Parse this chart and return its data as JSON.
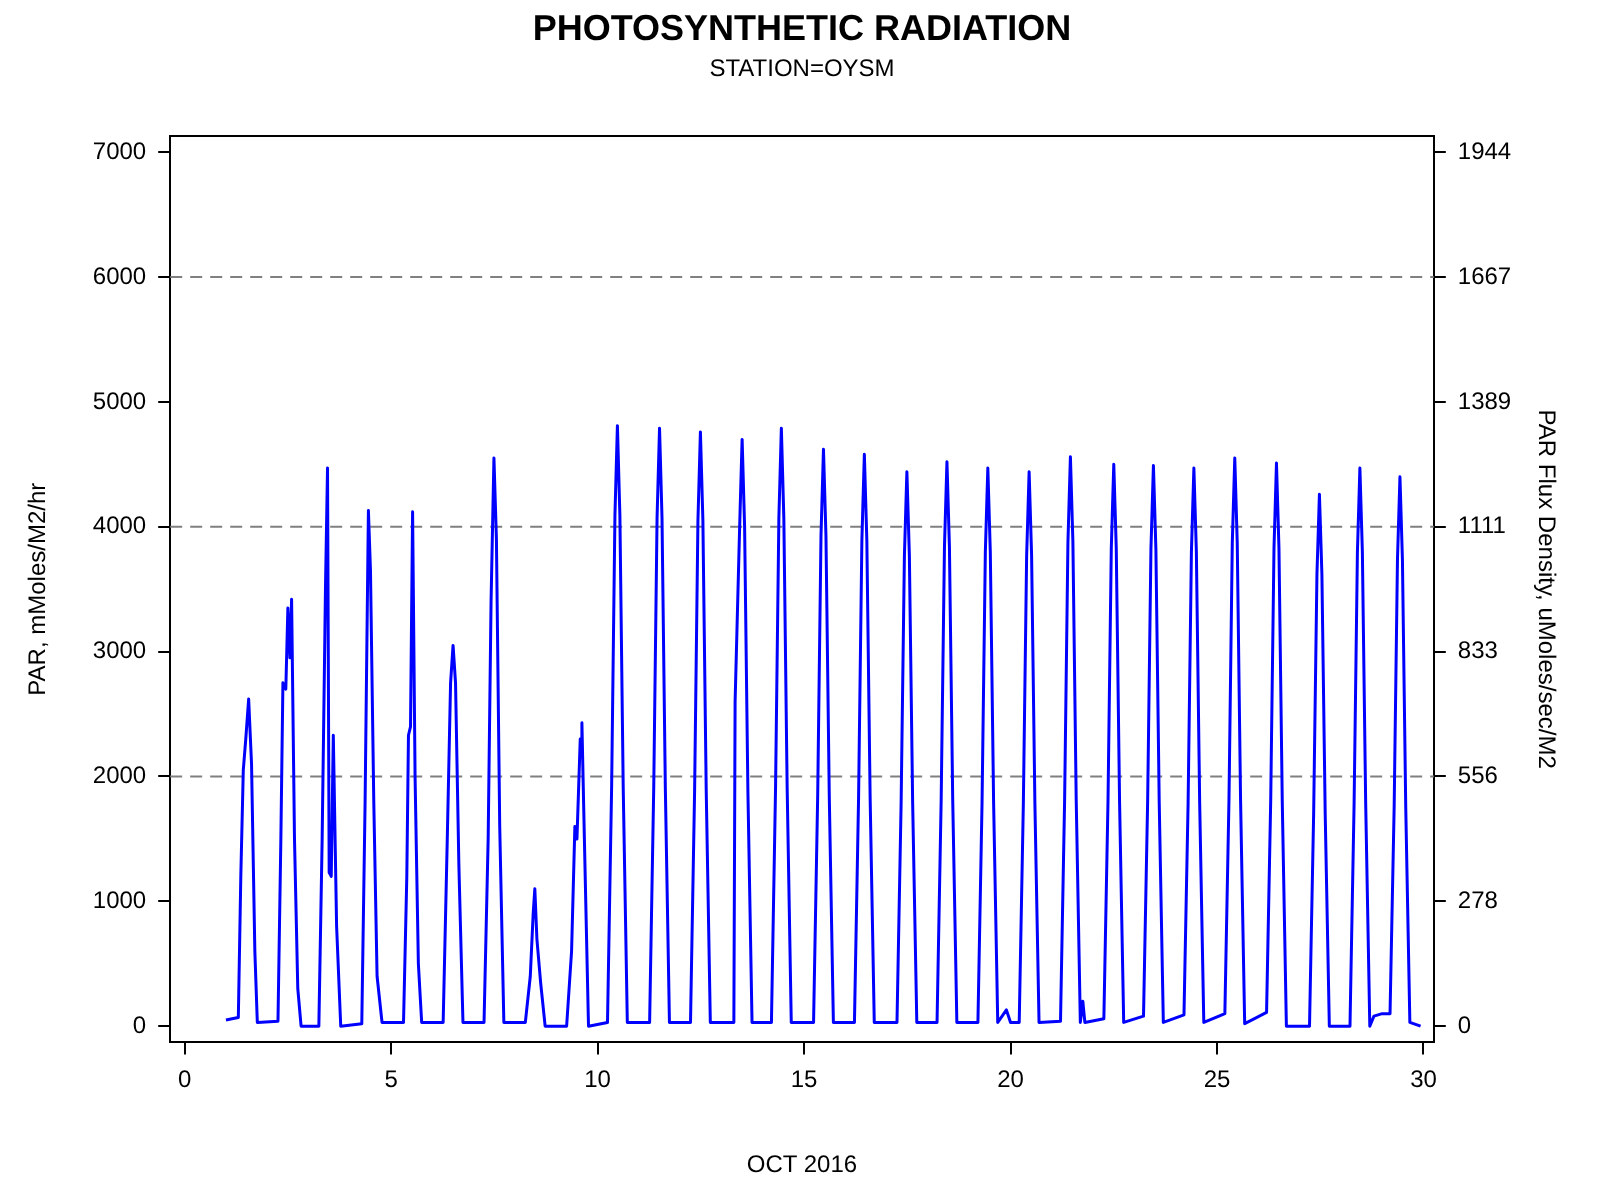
{
  "chart_data": {
    "type": "line",
    "title": "PHOTOSYNTHETIC RADIATION",
    "subtitle": "STATION=OYSM",
    "xlabel": "OCT 2016",
    "ylabel": "PAR, mMoles/M2/hr",
    "y2label": "PAR Flux Density, uMoles/sec/M2",
    "xlim": [
      -0.35,
      30.25
    ],
    "xticks": [
      0,
      5,
      10,
      15,
      20,
      25,
      30
    ],
    "ylim": [
      -130,
      7130
    ],
    "yticks": [
      0,
      1000,
      2000,
      3000,
      4000,
      5000,
      6000,
      7000
    ],
    "y2lim": [
      -36.1,
      1980.6
    ],
    "y2ticks": [
      0,
      {
        "value": 277.8,
        "label": "278"
      },
      {
        "value": 555.6,
        "label": "556"
      },
      {
        "value": 833.3,
        "label": "833"
      },
      {
        "value": 1111.1,
        "label": "1111"
      },
      {
        "value": 1388.9,
        "label": "1389"
      },
      {
        "value": 1666.7,
        "label": "1667"
      },
      {
        "value": 1944.4,
        "label": "1944"
      }
    ],
    "ref_lines": [
      {
        "axis": "y",
        "value": 2000,
        "color": "#808080",
        "line_style": "dashed"
      },
      {
        "axis": "y",
        "value": 4000,
        "color": "#808080",
        "line_style": "dashed"
      },
      {
        "axis": "y",
        "value": 6000,
        "color": "#808080",
        "line_style": "dashed"
      }
    ],
    "marker": "none",
    "line_style": "solid",
    "x": [
      1.0,
      1.3,
      1.36,
      1.42,
      1.48,
      1.55,
      1.62,
      1.7,
      1.76,
      2.26,
      2.33,
      2.38,
      2.45,
      2.5,
      2.55,
      2.59,
      2.66,
      2.74,
      2.82,
      3.25,
      3.33,
      3.41,
      3.46,
      3.5,
      3.55,
      3.6,
      3.68,
      3.78,
      4.29,
      4.37,
      4.45,
      4.5,
      4.58,
      4.66,
      4.78,
      5.3,
      5.38,
      5.42,
      5.47,
      5.52,
      5.58,
      5.66,
      5.74,
      6.26,
      6.36,
      6.44,
      6.5,
      6.56,
      6.64,
      6.74,
      7.25,
      7.35,
      7.42,
      7.49,
      7.55,
      7.63,
      7.73,
      8.25,
      8.37,
      8.44,
      8.48,
      8.53,
      8.62,
      8.73,
      9.25,
      9.37,
      9.45,
      9.5,
      9.58,
      9.62,
      9.68,
      9.78,
      10.24,
      10.34,
      10.42,
      10.48,
      10.54,
      10.62,
      10.72,
      11.26,
      11.36,
      11.44,
      11.5,
      11.56,
      11.64,
      11.74,
      12.25,
      12.35,
      12.43,
      12.49,
      12.55,
      12.63,
      12.73,
      13.3,
      13.33,
      13.44,
      13.5,
      13.56,
      13.64,
      13.74,
      14.21,
      14.31,
      14.39,
      14.45,
      14.51,
      14.59,
      14.69,
      15.23,
      15.33,
      15.41,
      15.47,
      15.53,
      15.61,
      15.71,
      16.22,
      16.32,
      16.4,
      16.46,
      16.52,
      16.6,
      16.7,
      17.25,
      17.35,
      17.43,
      17.49,
      17.55,
      17.63,
      17.73,
      18.22,
      18.32,
      18.4,
      18.46,
      18.52,
      18.6,
      18.7,
      19.21,
      19.31,
      19.39,
      19.45,
      19.51,
      19.59,
      19.69,
      19.9,
      20.0,
      20.21,
      20.31,
      20.39,
      20.45,
      20.51,
      20.59,
      20.69,
      21.21,
      21.31,
      21.39,
      21.45,
      21.51,
      21.59,
      21.69,
      21.75,
      21.8,
      22.26,
      22.36,
      22.44,
      22.5,
      22.56,
      22.64,
      22.74,
      23.22,
      23.32,
      23.4,
      23.46,
      23.52,
      23.6,
      23.7,
      24.2,
      24.3,
      24.38,
      24.44,
      24.5,
      24.58,
      24.68,
      25.19,
      25.29,
      25.37,
      25.43,
      25.49,
      25.57,
      25.67,
      26.2,
      26.3,
      26.38,
      26.44,
      26.5,
      26.58,
      26.68,
      27.24,
      27.34,
      27.42,
      27.48,
      27.54,
      27.62,
      27.72,
      28.22,
      28.32,
      28.4,
      28.46,
      28.52,
      28.6,
      28.7,
      28.8,
      29.0,
      29.19,
      29.29,
      29.37,
      29.43,
      29.49,
      29.57,
      29.67,
      29.93
    ],
    "series": [
      {
        "color": "#0000ff",
        "values": [
          50,
          70,
          1200,
          2050,
          2300,
          2620,
          2100,
          600,
          30,
          40,
          1500,
          2750,
          2700,
          3350,
          2950,
          3420,
          1500,
          300,
          0,
          0,
          1500,
          3500,
          4470,
          1230,
          1200,
          2330,
          800,
          0,
          20,
          1800,
          4130,
          3650,
          1800,
          400,
          30,
          30,
          1200,
          2330,
          2400,
          4120,
          2000,
          500,
          30,
          30,
          1500,
          2750,
          3050,
          2750,
          1300,
          30,
          30,
          1500,
          3400,
          4550,
          3900,
          1600,
          30,
          30,
          400,
          900,
          1100,
          700,
          350,
          0,
          0,
          600,
          1600,
          1500,
          2300,
          2430,
          1500,
          0,
          30,
          1920,
          4090,
          4810,
          4090,
          1920,
          30,
          30,
          1920,
          4070,
          4790,
          4070,
          1920,
          30,
          30,
          1900,
          4050,
          4760,
          4050,
          1900,
          30,
          30,
          2600,
          4000,
          4700,
          4000,
          1880,
          30,
          30,
          1920,
          4070,
          4790,
          4070,
          1920,
          30,
          30,
          1850,
          3930,
          4620,
          3930,
          1850,
          30,
          30,
          1830,
          3890,
          4580,
          3890,
          1830,
          30,
          30,
          1780,
          3770,
          4440,
          3770,
          1780,
          30,
          30,
          1810,
          3840,
          4520,
          3840,
          1810,
          30,
          30,
          1790,
          3800,
          4470,
          3800,
          1790,
          30,
          130,
          30,
          30,
          1780,
          3770,
          4440,
          3770,
          1780,
          30,
          40,
          1820,
          3880,
          4560,
          3880,
          1820,
          30,
          200,
          30,
          60,
          1800,
          3830,
          4500,
          3830,
          1800,
          30,
          80,
          1800,
          3820,
          4490,
          3820,
          1800,
          30,
          90,
          1790,
          3800,
          4470,
          3800,
          1790,
          30,
          100,
          1820,
          3870,
          4550,
          3870,
          1820,
          20,
          110,
          1800,
          3830,
          4510,
          3830,
          1800,
          0,
          0,
          1700,
          3620,
          4260,
          3620,
          1700,
          0,
          0,
          1790,
          3800,
          4470,
          3800,
          1790,
          0,
          80,
          100,
          100,
          1760,
          3740,
          4400,
          3740,
          1760,
          30,
          0
        ]
      }
    ]
  }
}
